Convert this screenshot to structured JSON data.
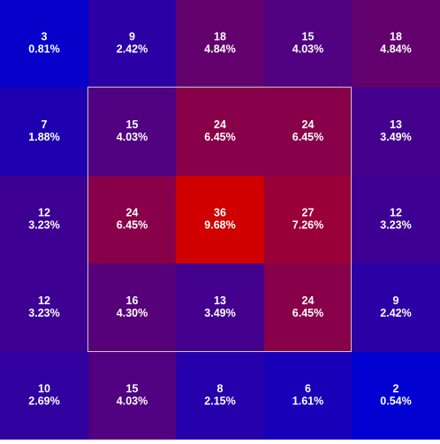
{
  "chart_data": {
    "type": "heatmap",
    "title": "",
    "xlabel": "",
    "ylabel": "",
    "grid": false,
    "legend": "none",
    "rows": [
      [
        {
          "count": 3,
          "percent": "0.81%"
        },
        {
          "count": 9,
          "percent": "2.42%"
        },
        {
          "count": 18,
          "percent": "4.84%"
        },
        {
          "count": 15,
          "percent": "4.03%"
        },
        {
          "count": 18,
          "percent": "4.84%"
        }
      ],
      [
        {
          "count": 7,
          "percent": "1.88%"
        },
        {
          "count": 15,
          "percent": "4.03%"
        },
        {
          "count": 24,
          "percent": "6.45%"
        },
        {
          "count": 24,
          "percent": "6.45%"
        },
        {
          "count": 13,
          "percent": "3.49%"
        }
      ],
      [
        {
          "count": 12,
          "percent": "3.23%"
        },
        {
          "count": 24,
          "percent": "6.45%"
        },
        {
          "count": 36,
          "percent": "9.68%"
        },
        {
          "count": 27,
          "percent": "7.26%"
        },
        {
          "count": 12,
          "percent": "3.23%"
        }
      ],
      [
        {
          "count": 12,
          "percent": "3.23%"
        },
        {
          "count": 16,
          "percent": "4.30%"
        },
        {
          "count": 13,
          "percent": "3.49%"
        },
        {
          "count": 24,
          "percent": "6.45%"
        },
        {
          "count": 9,
          "percent": "2.42%"
        }
      ],
      [
        {
          "count": 10,
          "percent": "2.69%"
        },
        {
          "count": 15,
          "percent": "4.03%"
        },
        {
          "count": 8,
          "percent": "2.15%"
        },
        {
          "count": 6,
          "percent": "1.61%"
        },
        {
          "count": 2,
          "percent": "0.54%"
        }
      ]
    ],
    "value_range": [
      2,
      36
    ],
    "colors": {
      "low": "#0000d0",
      "high": "#d00000",
      "label": "#ffffff",
      "highlight_border": "#c8c8c8"
    },
    "highlight_region": {
      "rows": [
        1,
        3
      ],
      "cols": [
        1,
        3
      ]
    }
  }
}
